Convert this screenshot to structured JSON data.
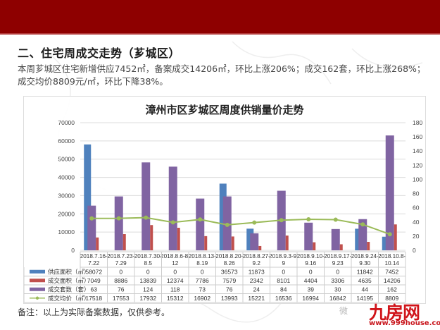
{
  "header": {
    "band_color": "#8e0000"
  },
  "section": {
    "title": "二、住宅周成交走势（芗城区）",
    "summary": "本周芗城区住宅新增供应7452㎡，备案成交14206㎡，环比上涨206%；成交162套，环比上涨268%；成交均价8809元/㎡，环比下降38%。"
  },
  "chart_data": {
    "type": "bar",
    "title": "漳州市区芗城区周度供销量价走势",
    "categories": [
      "2018.7.16-7.22",
      "2018.7.23-7.29",
      "2018.7.30-8.5",
      "2018.8.6-8.12",
      "2018.8.13-8.19",
      "2018.8.20-8.26",
      "2018.8.27-9.2",
      "2018.9.3-9.9",
      "2018.9.10-9.16",
      "2018.9.17-9.23",
      "2018.9.24-9.30",
      "2018.10.8-10.14"
    ],
    "category_lines": [
      [
        "2018.7.16-",
        "7.22"
      ],
      [
        "2018.7.23-",
        "7.29"
      ],
      [
        "2018.7.30-",
        "8.5"
      ],
      [
        "2018.8.6-8.",
        "12"
      ],
      [
        "2018.8.13-",
        "8.19"
      ],
      [
        "2018.8.20-",
        "8.26"
      ],
      [
        "2018.8.27-",
        "9.2"
      ],
      [
        "2018.9.3-9.",
        "9"
      ],
      [
        "2018.9.10-",
        "9.16"
      ],
      [
        "2018.9.17-",
        "9.23"
      ],
      [
        "2018.9.24-",
        "9.30"
      ],
      [
        "2018.10.8-",
        "10.14"
      ]
    ],
    "series": [
      {
        "name": "供应面积（㎡）",
        "type": "bar",
        "axis": "left",
        "color": "#4f81bd",
        "values": [
          58072,
          0,
          0,
          0,
          0,
          36573,
          11873,
          0,
          0,
          0,
          11842,
          7452
        ]
      },
      {
        "name": "成交面积（㎡）",
        "type": "bar",
        "axis": "left",
        "color": "#c0504d",
        "values": [
          7049,
          8886,
          13839,
          12374,
          7786,
          7579,
          2342,
          8101,
          4404,
          3306,
          4635,
          14206
        ]
      },
      {
        "name": "成交套数（套）",
        "type": "bar",
        "axis": "right",
        "color": "#8064a2",
        "values": [
          63,
          76,
          124,
          118,
          73,
          76,
          24,
          84,
          39,
          30,
          44,
          162
        ]
      },
      {
        "name": "成交均价（㎡）",
        "type": "line",
        "axis": "left",
        "color": "#9bbb59",
        "values": [
          17518,
          17553,
          17932,
          15312,
          16902,
          13993,
          15221,
          16536,
          16994,
          16842,
          14195,
          8809
        ]
      }
    ],
    "left_axis": {
      "min": 0,
      "max": 70000,
      "ticks": [
        "0",
        "10000",
        "20000",
        "30000",
        "40000",
        "50000",
        "60000",
        "70000"
      ]
    },
    "right_axis": {
      "min": 0,
      "max": 180,
      "ticks": [
        "0",
        "20",
        "40",
        "60",
        "80",
        "100",
        "120",
        "140",
        "160",
        "180"
      ]
    },
    "grid": true,
    "legend_position": "data-table"
  },
  "footnote": "备注：以上为实际备案数据，仅供参考。",
  "watermark": {
    "brand": "九房网",
    "url": "www.999house.com",
    "wechat": "微"
  }
}
